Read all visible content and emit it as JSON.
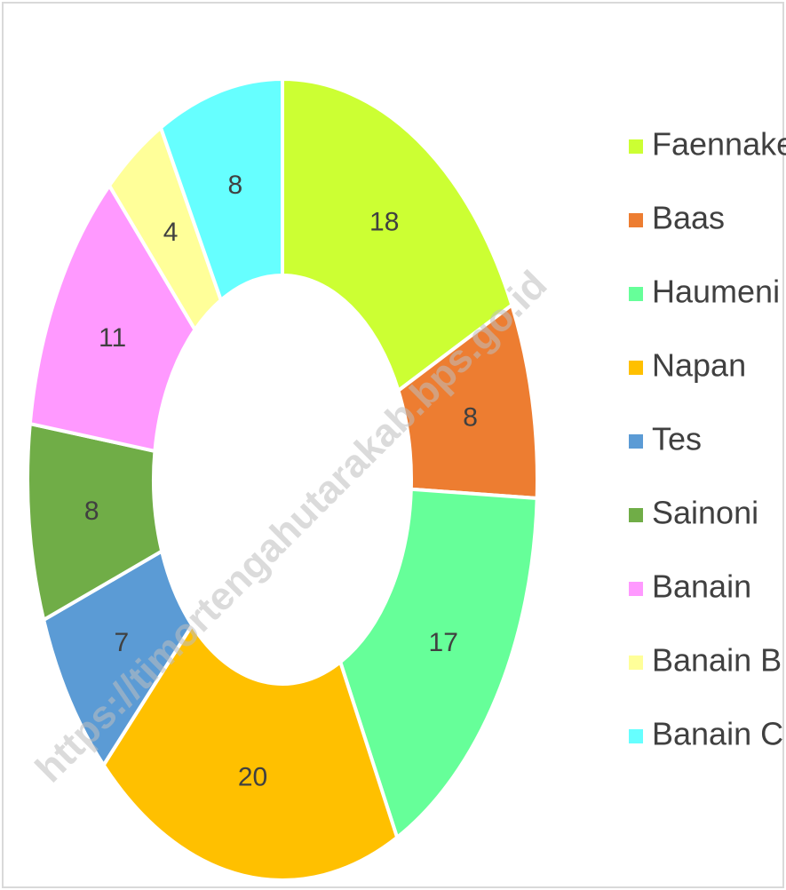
{
  "chart_data": {
    "type": "donut",
    "categories": [
      "Faennake",
      "Baas",
      "Haumeni",
      "Napan",
      "Tes",
      "Sainoni",
      "Banain",
      "Banain B",
      "Banain C"
    ],
    "values": [
      18,
      8,
      17,
      20,
      7,
      8,
      11,
      4,
      8
    ],
    "colors": [
      "#ccff33",
      "#ed7d31",
      "#66ff99",
      "#ffc000",
      "#5b9bd5",
      "#70ad47",
      "#ff99ff",
      "#ffff99",
      "#66ffff"
    ],
    "legend": "right",
    "watermark": "https://timortengahutarakab.bps.go.id"
  }
}
